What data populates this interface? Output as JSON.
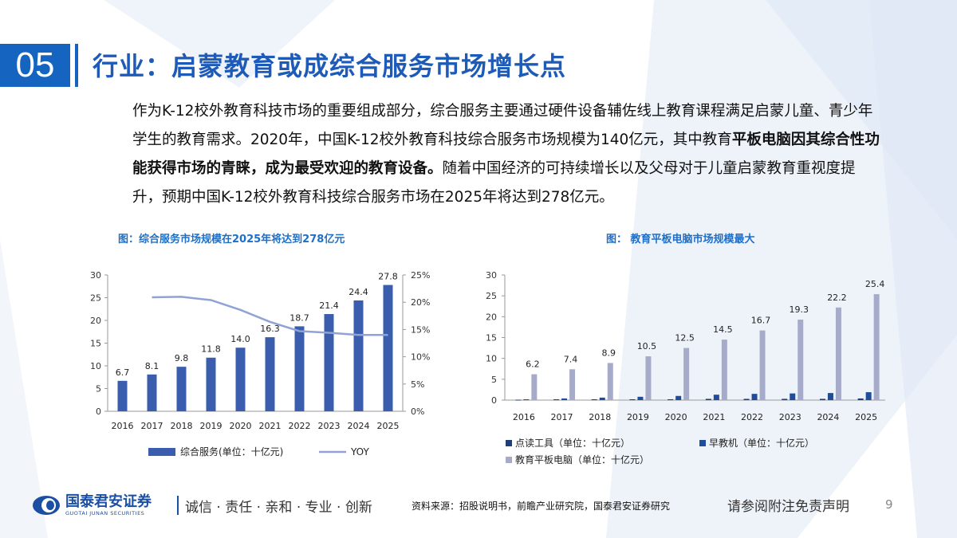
{
  "header": {
    "section_number": "05",
    "title": "行业：启蒙教育或成综合服务市场增长点"
  },
  "body": {
    "part1": "作为K-12校外教育科技市场的重要组成部分，综合服务主要通过硬件设备辅佐线上教育课程满足启蒙儿童、青少年学生的教育需求。2020年，中国K-12校外教育科技综合服务市场规模为140亿元，其中教育",
    "bold": "平板电脑因其综合性功能获得市场的青睐，成为最受欢迎的教育设备。",
    "part2": "随着中国经济的可持续增长以及父母对于儿童启蒙教育重视度提升，预期中国K-12校外教育科技综合服务市场在2025年将达到278亿元。"
  },
  "chart_data": [
    {
      "type": "bar",
      "title": "图：综合服务市场规模在2025年将达到278亿元",
      "categories": [
        "2016",
        "2017",
        "2018",
        "2019",
        "2020",
        "2021",
        "2022",
        "2023",
        "2024",
        "2025"
      ],
      "series": [
        {
          "name": "综合服务(单位：十亿元)",
          "type": "bar",
          "color": "#3a5dae",
          "values": [
            6.7,
            8.1,
            9.8,
            11.8,
            14.0,
            16.3,
            18.7,
            21.4,
            24.4,
            27.8
          ],
          "labels": [
            "6.7",
            "8.1",
            "9.8",
            "11.8",
            "14.0",
            "16.3",
            "18.7",
            "21.4",
            "24.4",
            "27.8"
          ]
        },
        {
          "name": "YOY",
          "type": "line",
          "axis": "right",
          "color": "#8fa3d4",
          "x": [
            "2017",
            "2018",
            "2019",
            "2020",
            "2021",
            "2022",
            "2023",
            "2024",
            "2025"
          ],
          "values": [
            0.209,
            0.21,
            0.204,
            0.186,
            0.164,
            0.147,
            0.144,
            0.14,
            0.14
          ]
        }
      ],
      "ylim": [
        0,
        30
      ],
      "yticks": [
        "0",
        "5",
        "10",
        "15",
        "20",
        "25",
        "30"
      ],
      "y2lim": [
        0,
        0.25
      ],
      "y2ticks": [
        "0%",
        "5%",
        "10%",
        "15%",
        "20%",
        "25%"
      ],
      "legend": "bottom"
    },
    {
      "type": "bar",
      "title": "图： 教育平板电脑市场规模最大",
      "categories": [
        "2016",
        "2017",
        "2018",
        "2019",
        "2020",
        "2021",
        "2022",
        "2023",
        "2024",
        "2025"
      ],
      "series": [
        {
          "name": "点读工具（单位：十亿元）",
          "color": "#1f3f7a",
          "values": [
            0.1,
            0.2,
            0.2,
            0.2,
            0.2,
            0.3,
            0.3,
            0.3,
            0.3,
            0.4
          ]
        },
        {
          "name": "早教机（单位：十亿元）",
          "color": "#1f4d9c",
          "values": [
            0.2,
            0.4,
            0.6,
            0.8,
            1.0,
            1.3,
            1.5,
            1.6,
            1.7,
            1.9
          ]
        },
        {
          "name": "教育平板电脑（单位：十亿元）",
          "color": "#a5abc9",
          "values": [
            6.2,
            7.4,
            8.9,
            10.5,
            12.5,
            14.5,
            16.7,
            19.3,
            22.2,
            25.4
          ],
          "labels": [
            "6.2",
            "7.4",
            "8.9",
            "10.5",
            "12.5",
            "14.5",
            "16.7",
            "19.3",
            "22.2",
            "25.4"
          ]
        }
      ],
      "ylim": [
        0,
        30
      ],
      "yticks": [
        "0",
        "5",
        "10",
        "15",
        "20",
        "25",
        "30"
      ],
      "legend": "bottom"
    }
  ],
  "footer": {
    "logo_cn": "国泰君安证券",
    "logo_en": "GUOTAI JUNAN SECURITIES",
    "slogan": "诚信 · 责任 · 亲和 · 专业 · 创新",
    "source": "资料来源：招股说明书，前瞻产业研究院，国泰君安证券研究",
    "disclaimer": "请参阅附注免责声明",
    "page": "9"
  },
  "colors": {
    "accent": "#1565c0",
    "title": "#1e5bb8",
    "caption": "#1f6fc7"
  }
}
